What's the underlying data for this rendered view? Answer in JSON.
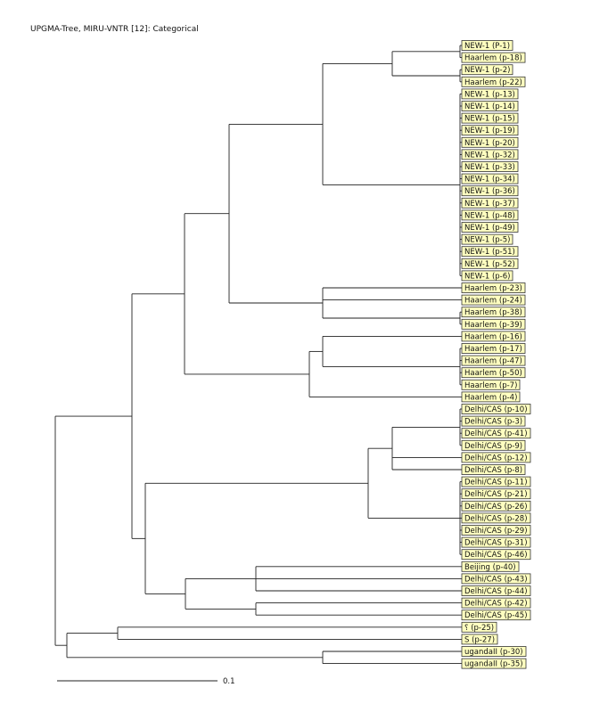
{
  "title": "UPGMA-Tree, MIRU-VNTR [12]: Categorical",
  "scale_label": "0.1",
  "leaf_fill_color": "#ffffc0",
  "leaves": [
    "NEW-1 (P-1)",
    "Haarlem (p-18)",
    "NEW-1 (p-2)",
    "Haarlem (p-22)",
    "NEW-1 (p-13)",
    "NEW-1 (p-14)",
    "NEW-1 (p-15)",
    "NEW-1 (p-19)",
    "NEW-1 (p-20)",
    "NEW-1 (p-32)",
    "NEW-1 (p-33)",
    "NEW-1 (p-34)",
    "NEW-1 (p-36)",
    "NEW-1 (p-37)",
    "NEW-1 (p-48)",
    "NEW-1 (p-49)",
    "NEW-1 (p-5)",
    "NEW-1 (p-51)",
    "NEW-1 (p-52)",
    "NEW-1 (p-6)",
    "Haarlem (p-23)",
    "Haarlem (p-24)",
    "Haarlem (p-38)",
    "Haarlem (p-39)",
    "Haarlem (p-16)",
    "Haarlem (p-17)",
    "Haarlem (p-47)",
    "Haarlem (p-50)",
    "Haarlem (p-7)",
    "Haarlem (p-4)",
    "Delhi/CAS (p-10)",
    "Delhi/CAS (p-3)",
    "Delhi/CAS (p-41)",
    "Delhi/CAS (p-9)",
    "Delhi/CAS (p-12)",
    "Delhi/CAS (p-8)",
    "Delhi/CAS (p-11)",
    "Delhi/CAS (p-21)",
    "Delhi/CAS (p-26)",
    "Delhi/CAS (p-28)",
    "Delhi/CAS (p-29)",
    "Delhi/CAS (p-31)",
    "Delhi/CAS (p-46)",
    "Beijing (p-40)",
    "Delhi/CAS (p-43)",
    "Delhi/CAS (p-44)",
    "Delhi/CAS (p-42)",
    "Delhi/CAS (p-45)",
    "؟ (p-25)",
    "S (p-27)",
    "ugandaII (p-30)",
    "ugandaII (p-35)"
  ]
}
